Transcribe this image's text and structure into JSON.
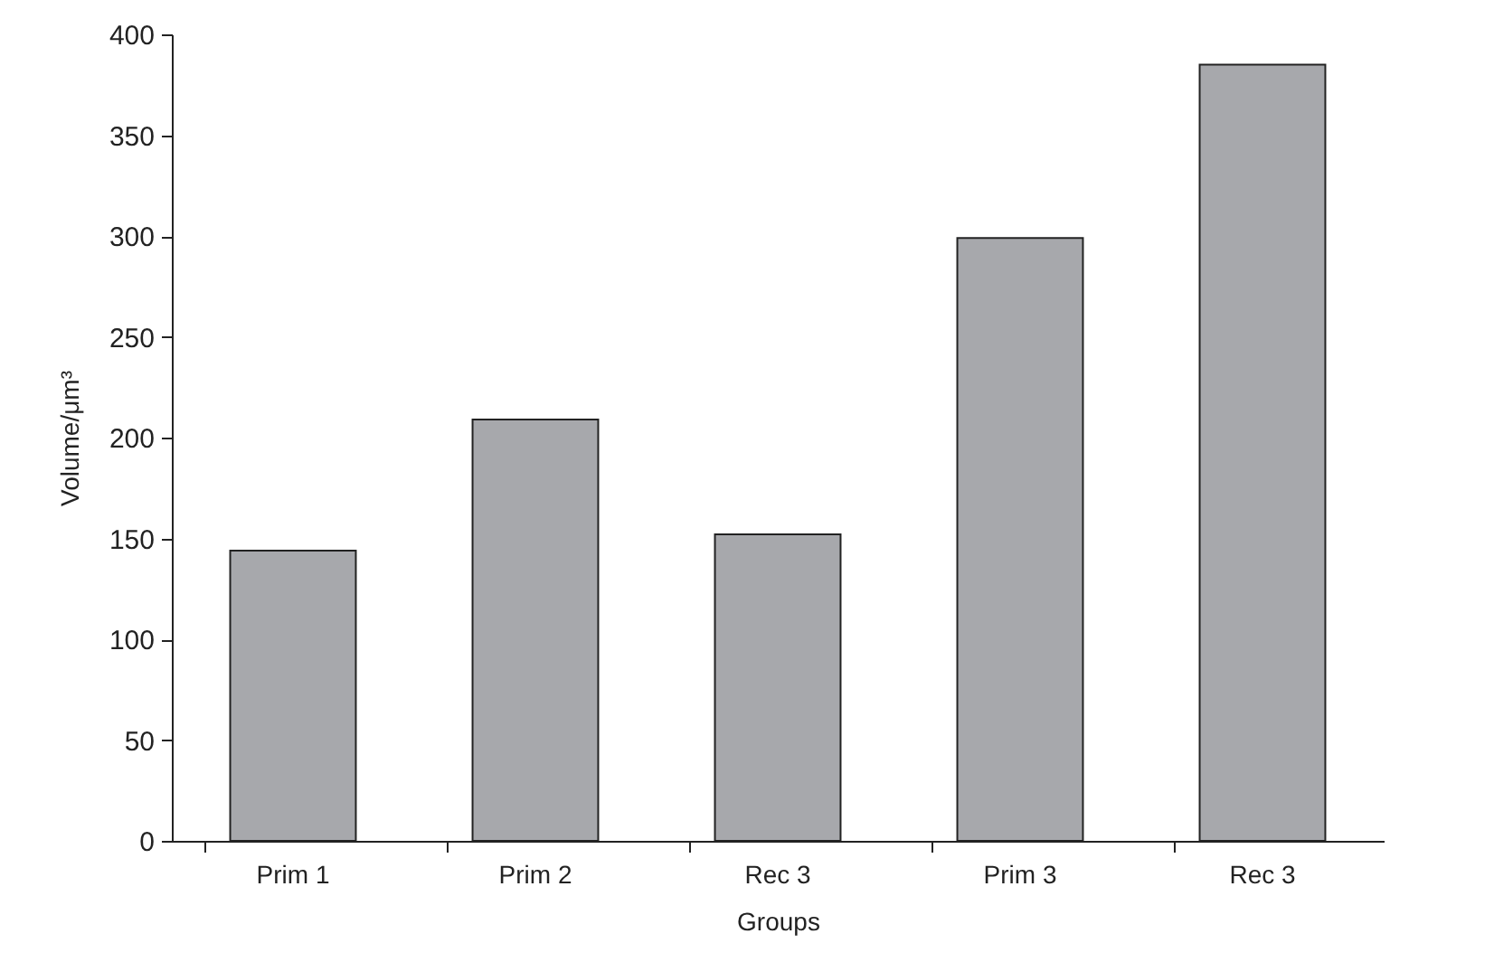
{
  "chart_data": {
    "type": "bar",
    "xlabel": "Groups",
    "ylabel": "Volume/μm³",
    "categories": [
      "Prim 1",
      "Prim 2",
      "Rec 3",
      "Prim 3",
      "Rec 3"
    ],
    "values": [
      144,
      209,
      152,
      299,
      385
    ],
    "color": "#a7a8ac",
    "ylim": [
      0,
      400
    ],
    "yticks": [
      0,
      50,
      100,
      150,
      200,
      250,
      300,
      350,
      400
    ],
    "grid": false
  }
}
